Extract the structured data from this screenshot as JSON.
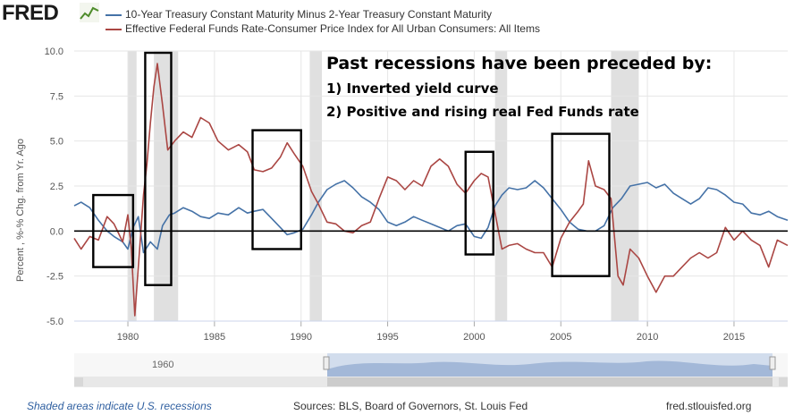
{
  "header": {
    "logo_text": "FRED",
    "logo_icon": "chart-line-icon"
  },
  "colors": {
    "series_blue": "#4572a7",
    "series_red": "#aa4643",
    "recession": "#e0e0e0",
    "nav_fill": "#c8d6ea",
    "footer_link": "#2f5fa0"
  },
  "annotation": {
    "title": "Past recessions have been preceded by:",
    "line1": "1) Inverted yield curve",
    "line2": "2) Positive and rising real Fed Funds rate"
  },
  "footer": {
    "left": "Shaded areas indicate U.S. recessions",
    "middle": "Sources: BLS, Board of Governors, St. Louis Fed",
    "right": "fred.stlouisfed.org"
  },
  "navigator": {
    "tick_label": "1960",
    "range": [
      1976.9,
      2018.1
    ]
  },
  "chart_data": {
    "type": "line",
    "title": "",
    "xlabel": "",
    "ylabel": "Percent , %-% Chg. from Yr. Ago",
    "xlim": [
      1976.9,
      2018.1
    ],
    "ylim": [
      -5.0,
      10.0
    ],
    "xticks": [
      1980,
      1985,
      1990,
      1995,
      2000,
      2005,
      2010,
      2015
    ],
    "xtick_labels": [
      "1980",
      "1985",
      "1990",
      "1995",
      "2000",
      "2005",
      "2010",
      "2015"
    ],
    "yticks": [
      -5.0,
      -2.5,
      0.0,
      2.5,
      5.0,
      7.5,
      10.0
    ],
    "ytick_labels": [
      "-5.0",
      "-2.5",
      "0.0",
      "2.5",
      "5.0",
      "7.5",
      "10.0"
    ],
    "grid": true,
    "zero_line": true,
    "recessions": [
      [
        1980.0,
        1980.5
      ],
      [
        1981.5,
        1982.9
      ],
      [
        1990.5,
        1991.2
      ],
      [
        2001.2,
        2001.9
      ],
      [
        2007.9,
        2009.5
      ]
    ],
    "highlight_boxes": [
      [
        1978.0,
        1980.3,
        -2.0,
        2.0
      ],
      [
        1981.0,
        1982.5,
        -3.0,
        9.9
      ],
      [
        1987.2,
        1990.0,
        -1.0,
        5.6
      ],
      [
        1999.5,
        2001.1,
        -1.3,
        4.4
      ],
      [
        2004.5,
        2007.8,
        -2.5,
        5.4
      ]
    ],
    "series": [
      {
        "name": "10-Year Treasury Constant Maturity Minus 2-Year Treasury Constant Maturity",
        "x": [
          1976.9,
          1977.3,
          1977.8,
          1978.3,
          1978.8,
          1979.2,
          1979.7,
          1980.0,
          1980.3,
          1980.6,
          1980.9,
          1981.3,
          1981.7,
          1982.0,
          1982.4,
          1982.7,
          1983.2,
          1983.7,
          1984.2,
          1984.7,
          1985.2,
          1985.8,
          1986.4,
          1986.9,
          1987.3,
          1987.8,
          1988.3,
          1988.8,
          1989.2,
          1989.6,
          1990.1,
          1990.6,
          1991.0,
          1991.5,
          1992.0,
          1992.5,
          1993.0,
          1993.5,
          1994.0,
          1994.5,
          1995.0,
          1995.5,
          1996.0,
          1996.5,
          1997.0,
          1997.5,
          1998.0,
          1998.5,
          1999.0,
          1999.5,
          2000.0,
          2000.4,
          2000.8,
          2001.2,
          2001.6,
          2002.0,
          2002.5,
          2003.0,
          2003.5,
          2004.0,
          2004.5,
          2005.0,
          2005.5,
          2006.0,
          2006.5,
          2007.0,
          2007.5,
          2008.0,
          2008.5,
          2009.0,
          2009.5,
          2010.0,
          2010.5,
          2011.0,
          2011.5,
          2012.0,
          2012.5,
          2013.0,
          2013.5,
          2014.0,
          2014.5,
          2015.0,
          2015.5,
          2016.0,
          2016.5,
          2017.0,
          2017.5,
          2018.1
        ],
        "values": [
          1.4,
          1.6,
          1.3,
          0.6,
          0.0,
          -0.3,
          -0.6,
          -1.0,
          0.2,
          0.8,
          -1.2,
          -0.6,
          -1.0,
          0.3,
          0.9,
          1.0,
          1.3,
          1.1,
          0.8,
          0.7,
          1.0,
          0.9,
          1.3,
          1.0,
          1.1,
          1.2,
          0.7,
          0.2,
          -0.2,
          -0.1,
          0.1,
          0.9,
          1.6,
          2.3,
          2.6,
          2.8,
          2.4,
          1.9,
          1.6,
          1.2,
          0.5,
          0.3,
          0.5,
          0.8,
          0.6,
          0.4,
          0.2,
          0.0,
          0.3,
          0.4,
          -0.3,
          -0.4,
          0.2,
          1.4,
          2.0,
          2.4,
          2.3,
          2.4,
          2.8,
          2.4,
          1.8,
          1.2,
          0.5,
          0.1,
          0.0,
          0.0,
          0.3,
          1.3,
          1.8,
          2.5,
          2.6,
          2.7,
          2.4,
          2.6,
          2.1,
          1.8,
          1.5,
          1.8,
          2.4,
          2.3,
          2.0,
          1.6,
          1.5,
          1.0,
          0.9,
          1.1,
          0.8,
          0.6
        ]
      },
      {
        "name": "Effective Federal Funds Rate-Consumer Price Index for All Urban Consumers: All Items",
        "x": [
          1976.9,
          1977.3,
          1977.8,
          1978.3,
          1978.8,
          1979.2,
          1979.7,
          1980.0,
          1980.2,
          1980.4,
          1980.6,
          1980.9,
          1981.1,
          1981.3,
          1981.5,
          1981.7,
          1982.0,
          1982.3,
          1982.7,
          1983.2,
          1983.7,
          1984.2,
          1984.7,
          1985.2,
          1985.8,
          1986.4,
          1986.9,
          1987.3,
          1987.8,
          1988.3,
          1988.8,
          1989.2,
          1989.6,
          1990.1,
          1990.6,
          1991.0,
          1991.5,
          1992.0,
          1992.5,
          1993.0,
          1993.5,
          1994.0,
          1994.5,
          1995.0,
          1995.5,
          1996.0,
          1996.5,
          1997.0,
          1997.5,
          1998.0,
          1998.5,
          1999.0,
          1999.5,
          2000.0,
          2000.4,
          2000.8,
          2001.2,
          2001.6,
          2002.0,
          2002.5,
          2003.0,
          2003.5,
          2004.0,
          2004.5,
          2005.0,
          2005.5,
          2006.0,
          2006.3,
          2006.6,
          2007.0,
          2007.5,
          2007.9,
          2008.3,
          2008.6,
          2009.0,
          2009.5,
          2010.0,
          2010.5,
          2011.0,
          2011.5,
          2012.0,
          2012.5,
          2013.0,
          2013.5,
          2014.0,
          2014.5,
          2015.0,
          2015.5,
          2016.0,
          2016.5,
          2017.0,
          2017.5,
          2018.1
        ],
        "values": [
          -0.4,
          -1.0,
          -0.3,
          -0.5,
          0.8,
          0.4,
          -0.6,
          0.9,
          -1.0,
          -4.7,
          -2.0,
          2.0,
          3.7,
          6.0,
          8.0,
          9.3,
          7.0,
          4.5,
          5.0,
          5.5,
          5.2,
          6.3,
          6.0,
          5.0,
          4.5,
          4.8,
          4.4,
          3.4,
          3.3,
          3.5,
          4.1,
          4.9,
          4.3,
          3.6,
          2.2,
          1.5,
          0.5,
          0.4,
          0.0,
          -0.1,
          0.3,
          0.5,
          1.8,
          3.0,
          2.8,
          2.3,
          2.8,
          2.5,
          3.6,
          4.0,
          3.6,
          2.6,
          2.1,
          2.8,
          3.2,
          3.0,
          1.0,
          -1.0,
          -0.8,
          -0.7,
          -1.0,
          -1.2,
          -1.2,
          -2.0,
          -0.4,
          0.5,
          1.1,
          1.5,
          3.9,
          2.5,
          2.3,
          1.8,
          -2.5,
          -3.0,
          -1.0,
          -1.5,
          -2.5,
          -3.4,
          -2.5,
          -2.5,
          -2.0,
          -1.5,
          -1.2,
          -1.5,
          -1.2,
          0.2,
          -0.5,
          0.0,
          -0.5,
          -0.8,
          -2.0,
          -0.5,
          -0.8
        ]
      }
    ]
  }
}
